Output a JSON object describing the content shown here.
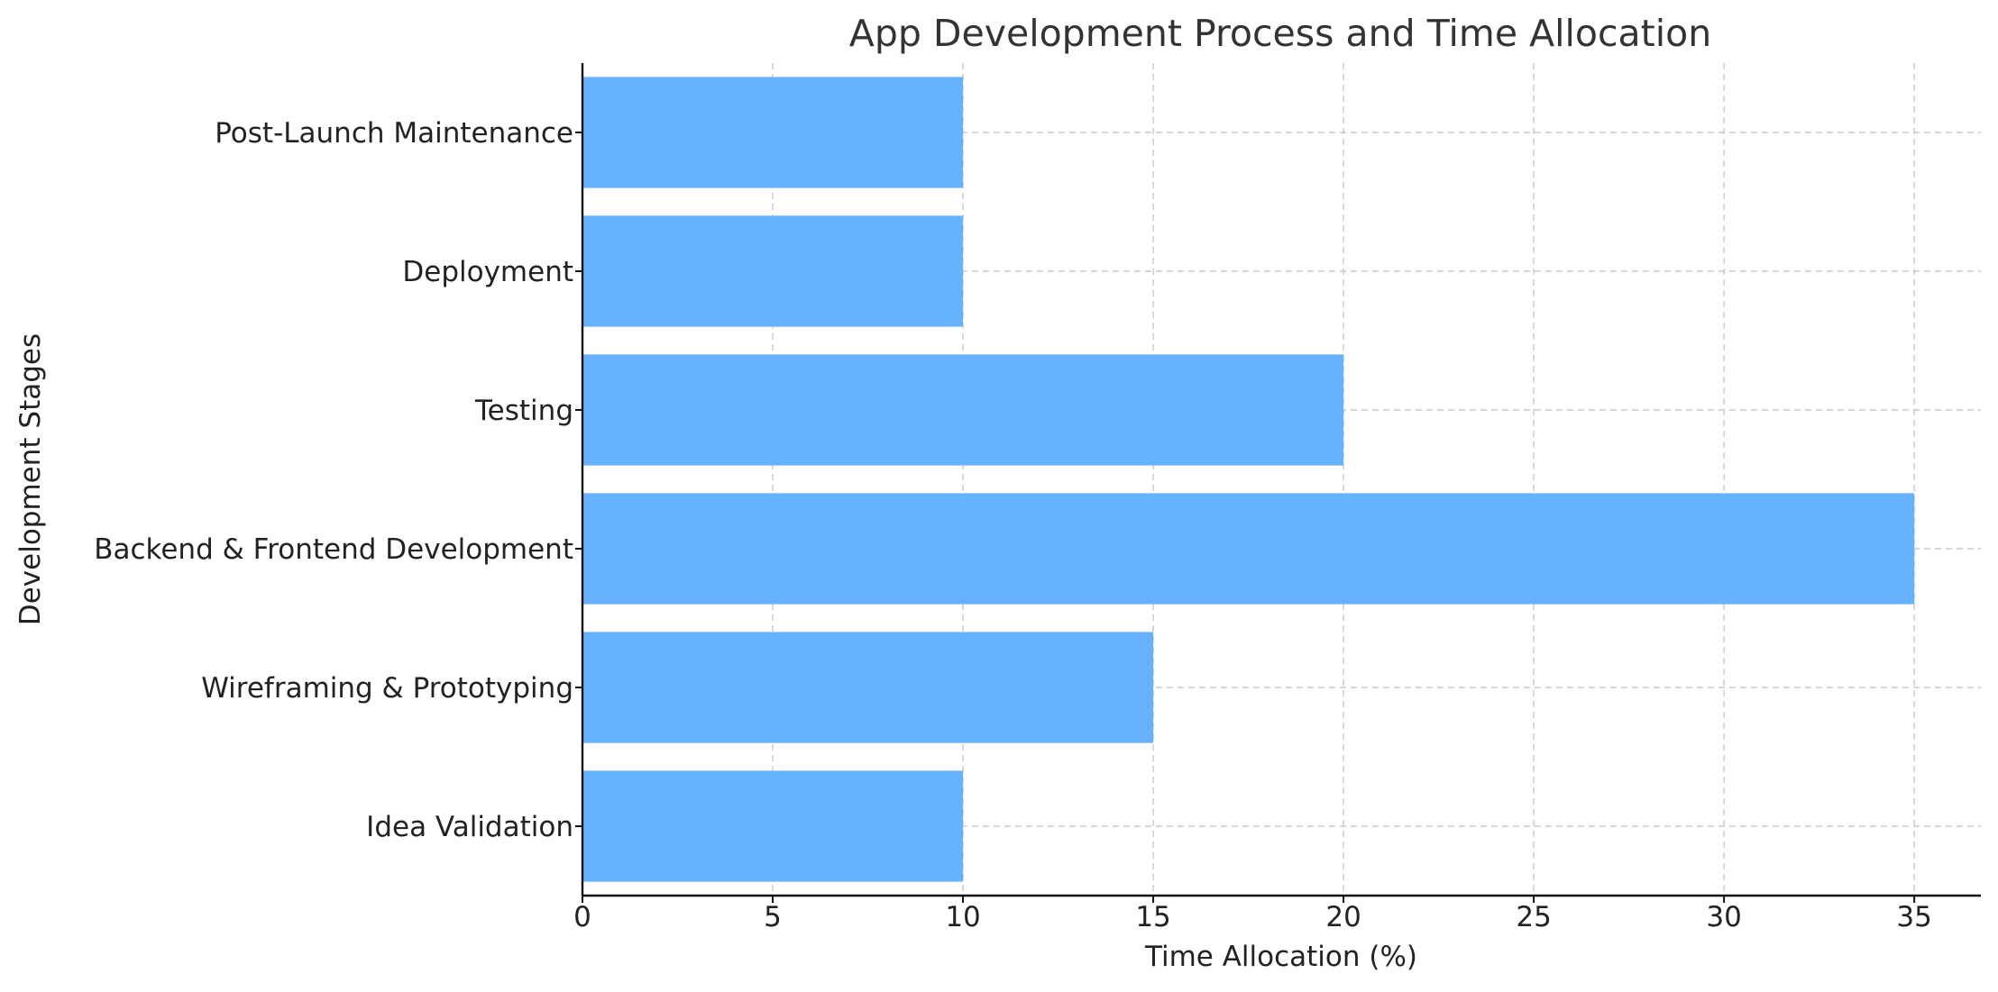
{
  "chart_data": {
    "type": "bar",
    "orientation": "horizontal",
    "title": "App Development Process and Time Allocation",
    "xlabel": "Time Allocation (%)",
    "ylabel": "Development Stages",
    "categories": [
      "Idea Validation",
      "Wireframing & Prototyping",
      "Backend & Frontend Development",
      "Testing",
      "Deployment",
      "Post-Launch Maintenance"
    ],
    "values": [
      10,
      15,
      35,
      20,
      10,
      10
    ],
    "xlim": [
      0,
      36.75
    ],
    "xticks": [
      0,
      5,
      10,
      15,
      20,
      25,
      30,
      35
    ],
    "grid": true,
    "bar_color": "#66b2ff"
  }
}
